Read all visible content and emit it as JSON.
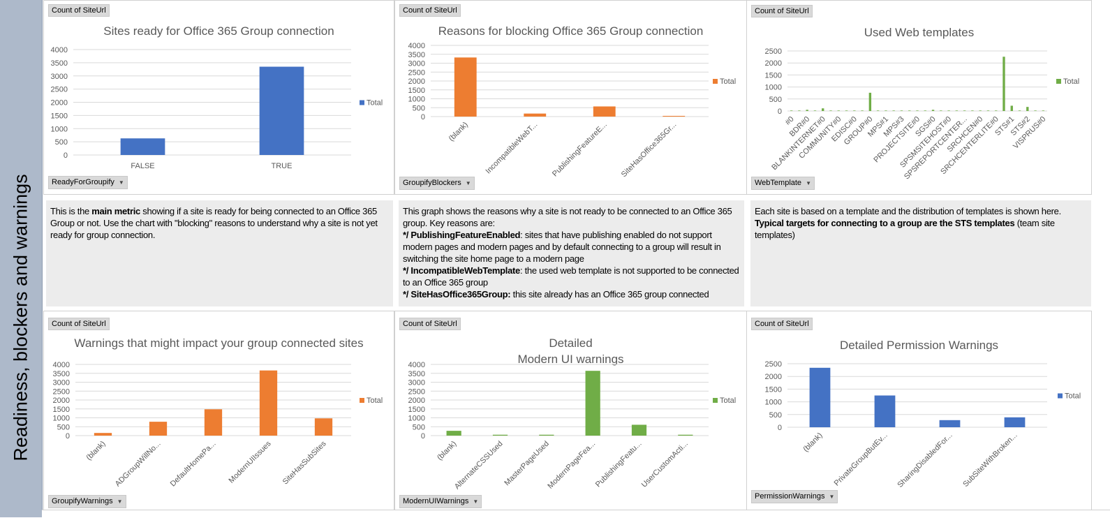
{
  "sidebar": {
    "title": "Readiness, blockers and warnings"
  },
  "colors": {
    "blue": "#4472c4",
    "orange": "#ed7d31",
    "green": "#70ad47",
    "sidebar": "#adb9ca",
    "note_bg": "#ececec"
  },
  "panels": [
    {
      "value_field": "Count of SiteUrl",
      "axis_field": "ReadyForGroupify"
    },
    {
      "value_field": "Count of SiteUrl",
      "axis_field": "GroupifyBlockers"
    },
    {
      "value_field": "Count of SiteUrl",
      "axis_field": "WebTemplate"
    },
    {
      "value_field": "Count of SiteUrl",
      "axis_field": "GroupifyWarnings"
    },
    {
      "value_field": "Count of SiteUrl",
      "axis_field": "ModernUIWarnings"
    },
    {
      "value_field": "Count of SiteUrl",
      "axis_field": "PermissionWarnings"
    }
  ],
  "notes": [
    {
      "segments": [
        {
          "text": "This is the ",
          "bold": false
        },
        {
          "text": "main metric",
          "bold": true
        },
        {
          "text": " showing if a site is ready for being connected to an Office 365 Group or not. Use the chart with \"blocking\" reasons to understand why a site is not yet ready for group connection.",
          "bold": false
        }
      ]
    },
    {
      "segments": [
        {
          "text": "This graph shows the reasons why a site is not ready to be connected to an Office 365 group. Key reasons are:\n",
          "bold": false
        },
        {
          "text": "*/ PublishingFeatureEnabled",
          "bold": true
        },
        {
          "text": ": sites that have publishing enabled do not support modern pages and modern pages and by default connecting to a group will result in switching the site home page to a modern page\n",
          "bold": false
        },
        {
          "text": "*/ IncompatibleWebTemplate",
          "bold": true
        },
        {
          "text": ": the used web template is not supported to be connected to an Office 365 group\n",
          "bold": false
        },
        {
          "text": "*/ SiteHasOffice365Group:",
          "bold": true
        },
        {
          "text": " this site already has an Office 365 group connected",
          "bold": false
        }
      ]
    },
    {
      "segments": [
        {
          "text": "Each site is based on a template and the distribution of templates is shown here. ",
          "bold": false
        },
        {
          "text": "Typical targets for connecting to a group are the STS templates",
          "bold": true
        },
        {
          "text": " (team site templates)",
          "bold": false
        }
      ]
    }
  ],
  "chart_data": [
    {
      "type": "bar",
      "title": "Sites ready for Office 365 Group connection",
      "categories": [
        "FALSE",
        "TRUE"
      ],
      "series": [
        {
          "name": "Total",
          "values": [
            630,
            3350
          ]
        }
      ],
      "color": "#4472c4",
      "ylim": [
        0,
        4000
      ],
      "yticks": [
        0,
        500,
        1000,
        1500,
        2000,
        2500,
        3000,
        3500,
        4000
      ],
      "grid": true,
      "legend": "right",
      "xlabel": "",
      "ylabel": ""
    },
    {
      "type": "bar",
      "title": "Reasons for blocking Office 365 Group connection",
      "categories": [
        "(blank)",
        "IncompatibleWebT...",
        "PublishingFeatureE...",
        "SiteHasOffice365Gr..."
      ],
      "series": [
        {
          "name": "Total",
          "values": [
            3320,
            170,
            570,
            40
          ]
        }
      ],
      "color": "#ed7d31",
      "ylim": [
        0,
        4000
      ],
      "yticks": [
        0,
        500,
        1000,
        1500,
        2000,
        2500,
        3000,
        3500,
        4000
      ],
      "grid": true,
      "legend": "right",
      "xlabel": "",
      "ylabel": ""
    },
    {
      "type": "bar",
      "title": "Used Web templates",
      "categories": [
        "#0",
        "",
        "BDR#0",
        "",
        "BLANKINTERNET#0",
        "",
        "COMMUNITY#0",
        "",
        "EDISC#0",
        "",
        "GROUP#0",
        "",
        "MPS#1",
        "",
        "MPS#3",
        "",
        "PROJECTSITE#0",
        "",
        "SGS#0",
        "",
        "SPSMSITEHOST#0",
        "",
        "SPSREPORTCENTER...",
        "",
        "SRCHCEN#0",
        "",
        "SRCHCENTERLITE#0",
        "",
        "STS#1",
        "",
        "STS#2",
        "",
        "VISPRUS#0"
      ],
      "series": [
        {
          "name": "Total",
          "values": [
            20,
            20,
            50,
            20,
            110,
            20,
            20,
            20,
            20,
            20,
            760,
            20,
            20,
            20,
            20,
            20,
            20,
            20,
            50,
            20,
            20,
            20,
            20,
            20,
            20,
            20,
            20,
            2260,
            220,
            20,
            170,
            20,
            20
          ]
        }
      ],
      "color": "#70ad47",
      "ylim": [
        0,
        2500
      ],
      "yticks": [
        0,
        500,
        1000,
        1500,
        2000,
        2500
      ],
      "grid": true,
      "legend": "right",
      "xlabel": "",
      "ylabel": ""
    },
    {
      "type": "bar",
      "title": "Warnings that might impact your group connected sites",
      "categories": [
        "(blank)",
        "ADGroupWillNo...",
        "DefaultHomePa...",
        "ModernUIIssues",
        "SiteHasSubSites"
      ],
      "series": [
        {
          "name": "Total",
          "values": [
            150,
            780,
            1480,
            3660,
            970
          ]
        }
      ],
      "color": "#ed7d31",
      "ylim": [
        0,
        4000
      ],
      "yticks": [
        0,
        500,
        1000,
        1500,
        2000,
        2500,
        3000,
        3500,
        4000
      ],
      "grid": true,
      "legend": "right",
      "xlabel": "",
      "ylabel": ""
    },
    {
      "type": "bar",
      "title": "Detailed\nModern UI warnings",
      "categories": [
        "(blank)",
        "AlternateCSSUsed",
        "MasterPageUsed",
        "ModernPageFea...",
        "PublishingFeatu...",
        "UserCustomActi..."
      ],
      "series": [
        {
          "name": "Total",
          "values": [
            270,
            50,
            50,
            3640,
            610,
            50
          ]
        }
      ],
      "color": "#70ad47",
      "ylim": [
        0,
        4000
      ],
      "yticks": [
        0,
        500,
        1000,
        1500,
        2000,
        2500,
        3000,
        3500,
        4000
      ],
      "grid": true,
      "legend": "right",
      "xlabel": "",
      "ylabel": ""
    },
    {
      "type": "bar",
      "title": "Detailed Permission Warnings",
      "categories": [
        "(blank)",
        "PrivateGroupButEv...",
        "SharingDisabledFor...",
        "SubSiteWithBroken..."
      ],
      "series": [
        {
          "name": "Total",
          "values": [
            2340,
            1250,
            280,
            390
          ]
        }
      ],
      "color": "#4472c4",
      "ylim": [
        0,
        2500
      ],
      "yticks": [
        0,
        500,
        1000,
        1500,
        2000,
        2500
      ],
      "grid": true,
      "legend": "right",
      "xlabel": "",
      "ylabel": ""
    }
  ]
}
